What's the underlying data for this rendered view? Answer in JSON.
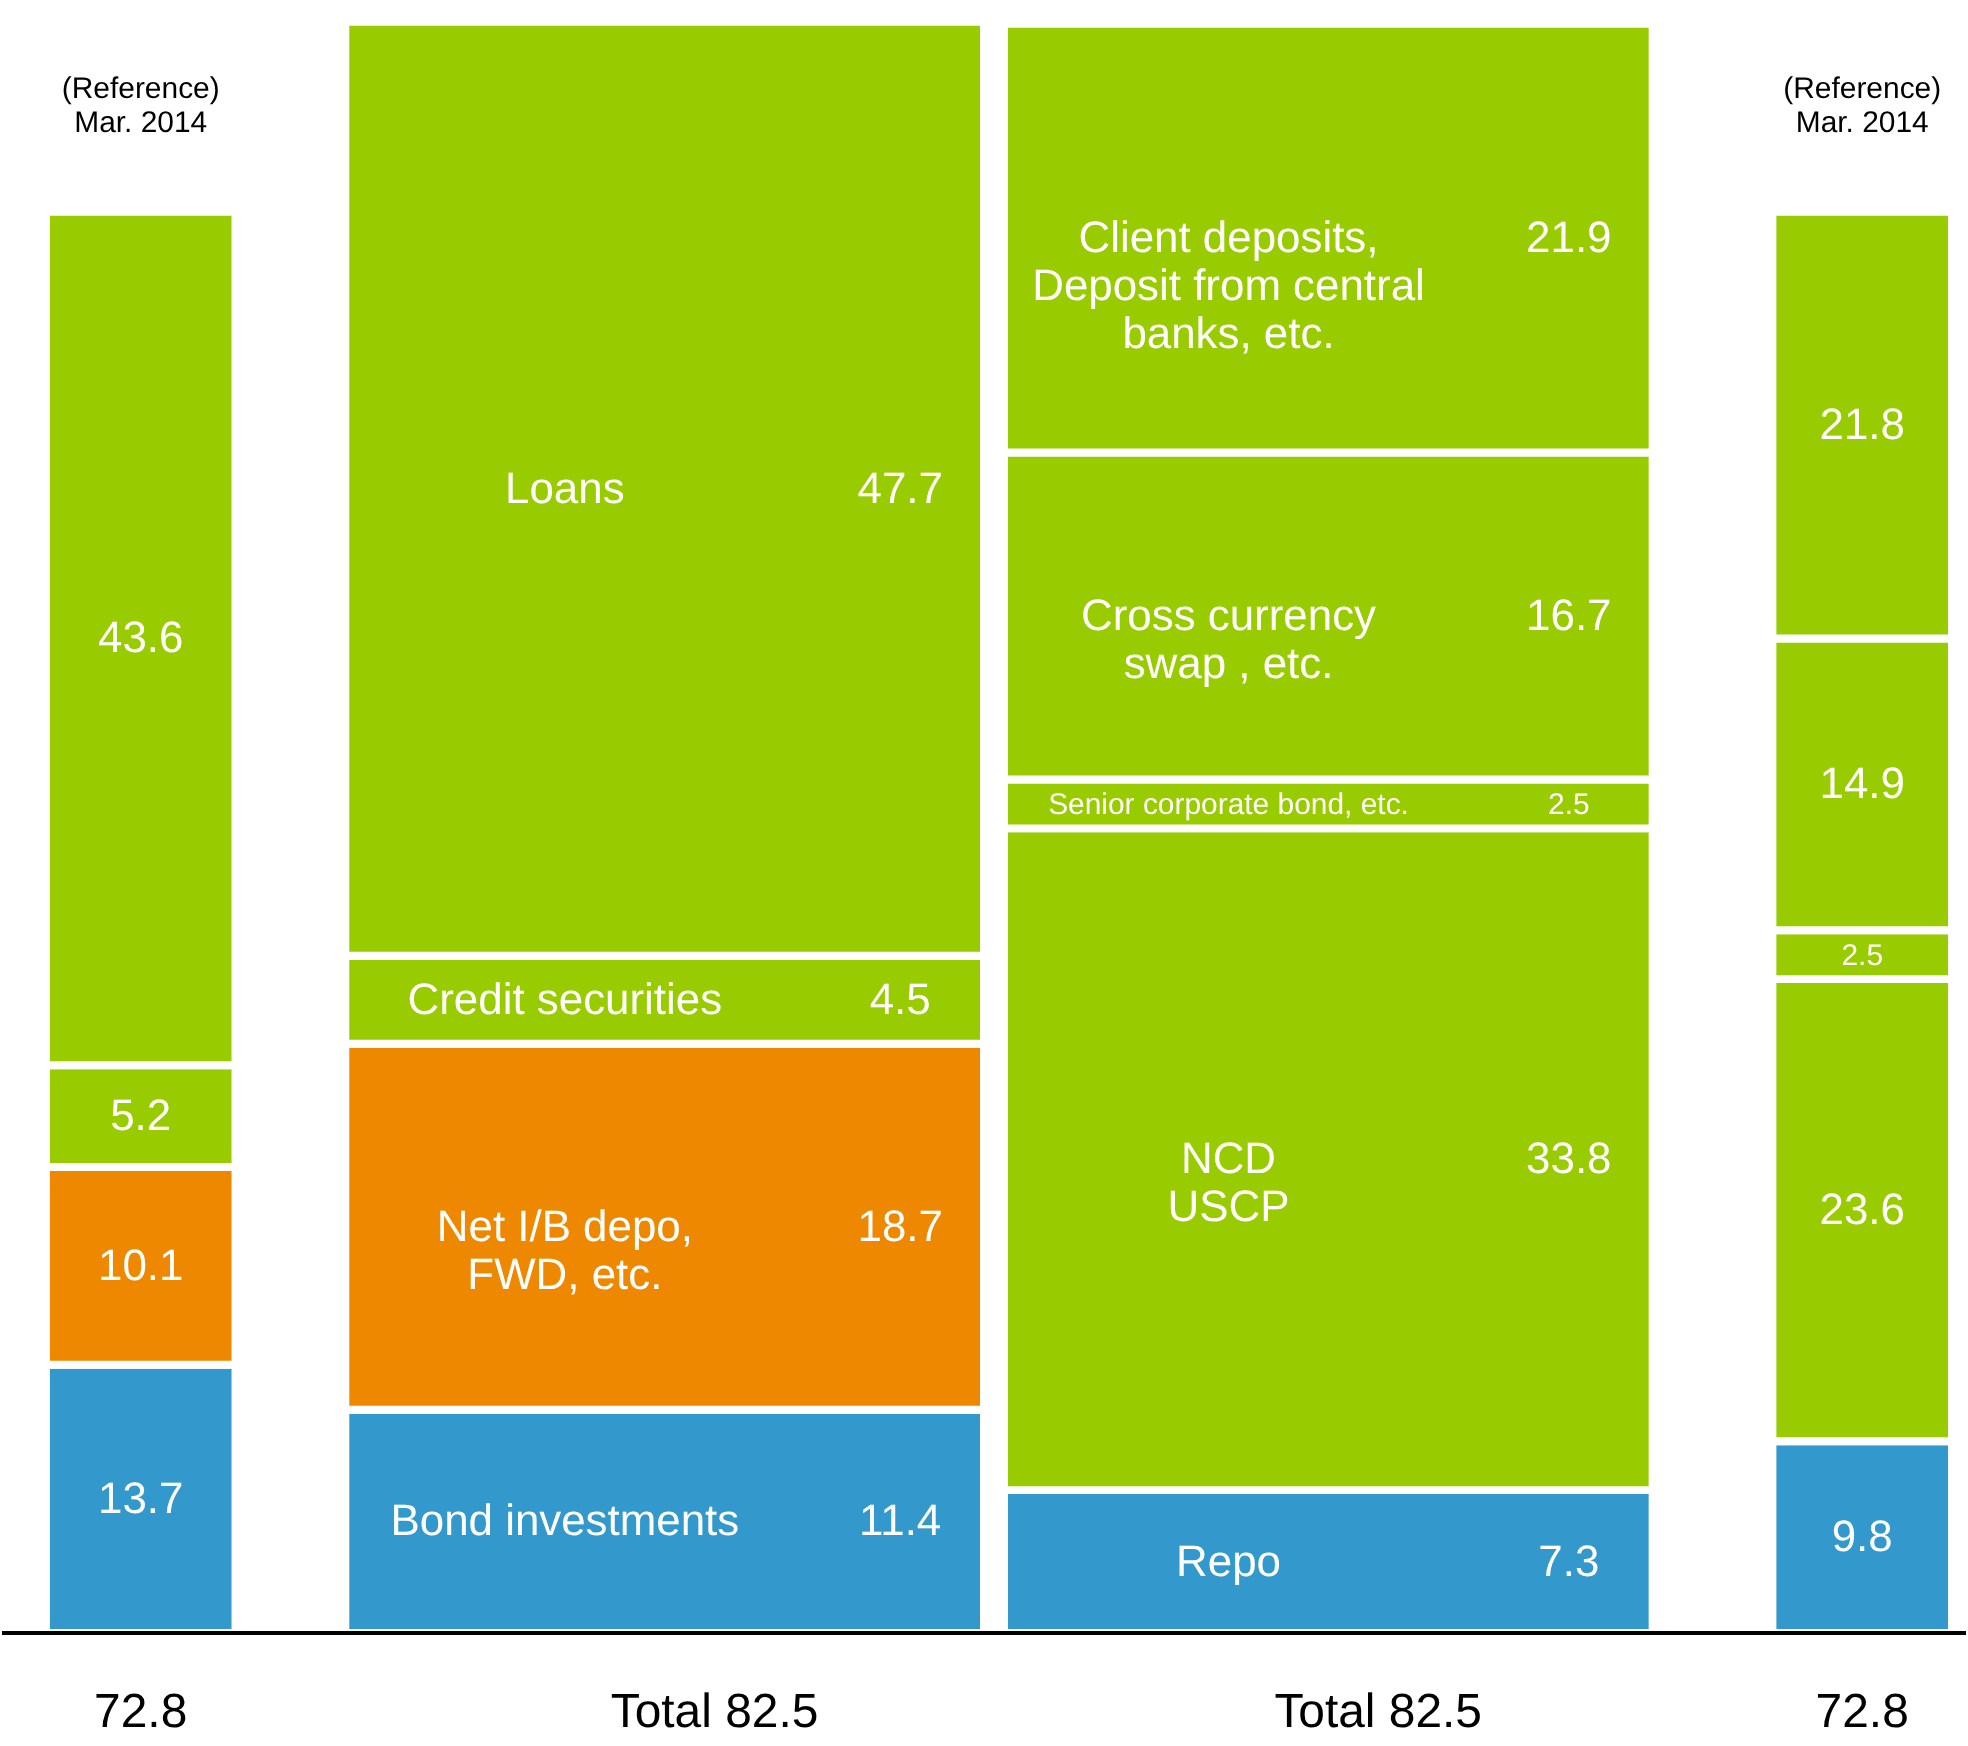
{
  "chart_data": {
    "type": "bar",
    "stacked": true,
    "data_labels": true,
    "legend": false,
    "grid": false,
    "categories": [
      "(Reference)\nMar. 2014",
      null,
      null,
      "(Reference)\nMar. 2014"
    ],
    "series": [
      {
        "name": "Bond investments",
        "color": "#3399cc",
        "values": [
          13.7,
          11.4,
          null,
          null
        ]
      },
      {
        "name": "Net I/B depo,\nFWD, etc.",
        "color": "#ee8800",
        "values": [
          10.1,
          18.7,
          null,
          null
        ]
      },
      {
        "name": "Credit securities",
        "color": "#99cc00",
        "values": [
          5.2,
          4.5,
          null,
          null
        ]
      },
      {
        "name": "Loans",
        "color": "#99cc00",
        "values": [
          43.6,
          47.7,
          null,
          null
        ]
      },
      {
        "name": "Repo",
        "color": "#3399cc",
        "values": [
          null,
          null,
          7.3,
          9.8
        ]
      },
      {
        "name": "NCD\nUSCP",
        "color": "#99cc00",
        "values": [
          null,
          null,
          33.8,
          23.6
        ]
      },
      {
        "name": "Senior corporate bond, etc.",
        "color": "#99cc00",
        "values": [
          null,
          null,
          2.5,
          2.5
        ]
      },
      {
        "name": "Cross currency\nswap , etc.",
        "color": "#99cc00",
        "values": [
          null,
          null,
          16.7,
          14.9
        ]
      },
      {
        "name": "Client deposits,\nDeposit from central\nbanks, etc.",
        "color": "#99cc00",
        "values": [
          null,
          null,
          21.9,
          21.8
        ]
      }
    ],
    "totals": [
      "72.8",
      "Total      82.5",
      "Total      82.5",
      "72.8"
    ]
  }
}
